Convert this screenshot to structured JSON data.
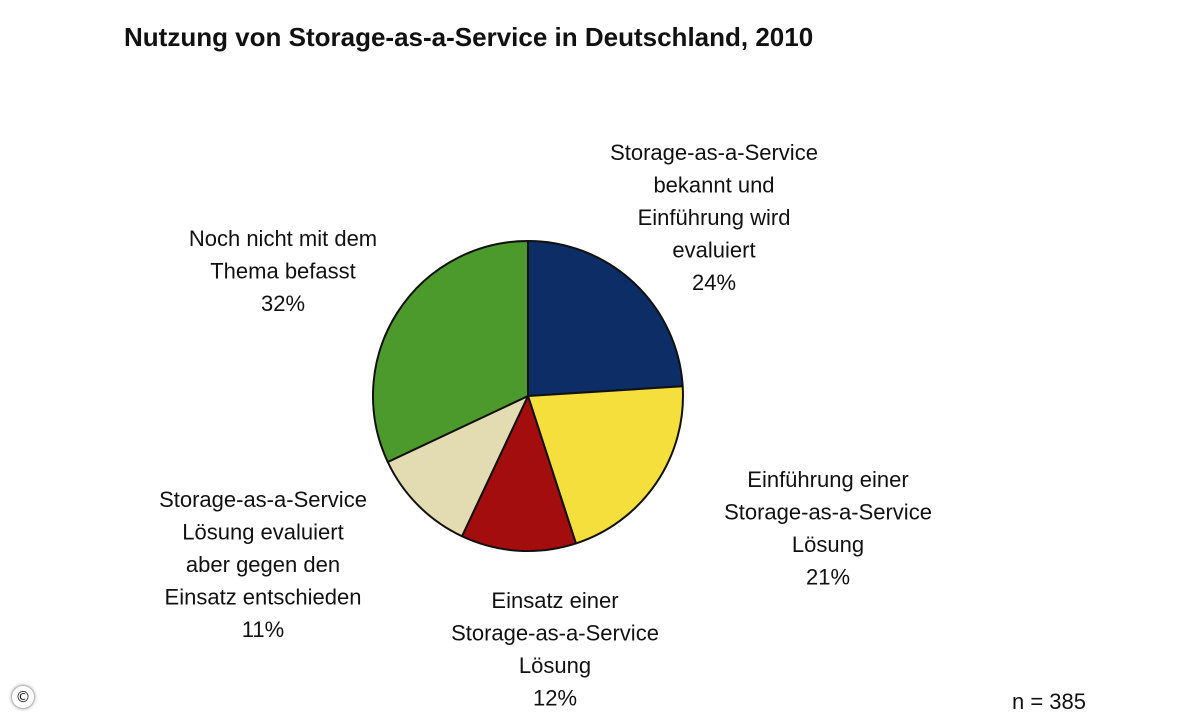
{
  "chart_data": {
    "type": "pie",
    "title": "Nutzung von Storage-as-a-Service in Deutschland, 2010",
    "slices": [
      {
        "label": [
          "Storage-as-a-Service",
          "bekannt und",
          "Einführung wird",
          "evaluiert"
        ],
        "percent_text": "24%",
        "value": 24,
        "color": "#0d2d66"
      },
      {
        "label": [
          "Einführung einer",
          "Storage-as-a-Service",
          "Lösung"
        ],
        "percent_text": "21%",
        "value": 21,
        "color": "#f5df3c"
      },
      {
        "label": [
          "Einsatz einer",
          "Storage-as-a-Service",
          "Lösung"
        ],
        "percent_text": "12%",
        "value": 12,
        "color": "#a40d0d"
      },
      {
        "label": [
          "Storage-as-a-Service",
          "Lösung evaluiert",
          "aber gegen den",
          "Einsatz entschieden"
        ],
        "percent_text": "11%",
        "value": 11,
        "color": "#e3dcb3"
      },
      {
        "label": [
          "Noch nicht mit dem",
          "Thema befasst"
        ],
        "percent_text": "32%",
        "value": 32,
        "color": "#4d9a2c"
      }
    ],
    "start": "12 o'clock",
    "direction": "clockwise",
    "legend": "none"
  },
  "footnote": "n = 385",
  "copyright_symbol": "©"
}
